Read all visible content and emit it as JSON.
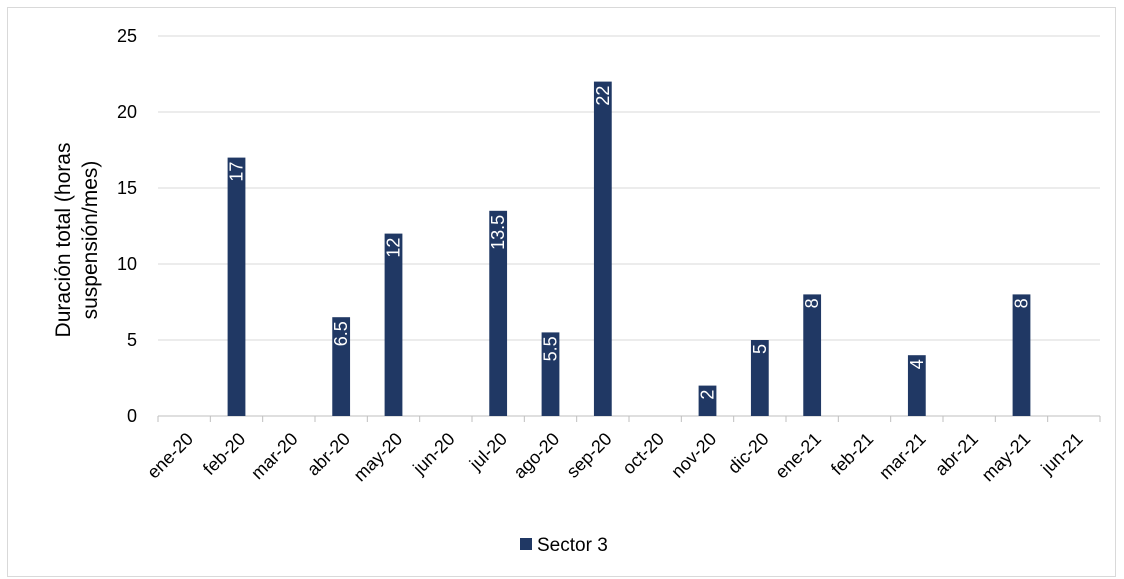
{
  "chart_data": {
    "type": "bar",
    "categories": [
      "ene-20",
      "feb-20",
      "mar-20",
      "abr-20",
      "may-20",
      "jun-20",
      "jul-20",
      "ago-20",
      "sep-20",
      "oct-20",
      "nov-20",
      "dic-20",
      "ene-21",
      "feb-21",
      "mar-21",
      "abr-21",
      "may-21",
      "jun-21"
    ],
    "series": [
      {
        "name": "Sector 3",
        "values": [
          0,
          17,
          0,
          6.5,
          12,
          0,
          13.5,
          5.5,
          22,
          0,
          2,
          5,
          8,
          0,
          4,
          0,
          8,
          0
        ],
        "labels": [
          "",
          "17",
          "",
          "6.5",
          "12",
          "",
          "13.5",
          "5.5",
          "22",
          "",
          "2",
          "5",
          "8",
          "",
          "4",
          "",
          "8",
          ""
        ],
        "color": "#203864"
      }
    ],
    "ylabel_line1": "Duración total (horas",
    "ylabel_line2": "suspensión/mes)",
    "ylim": [
      0,
      25
    ],
    "yticks": [
      0,
      5,
      10,
      15,
      20,
      25
    ],
    "grid": true,
    "legend": "bottom",
    "colors": {
      "gridline": "#d9d9d9",
      "axis": "#bfbfbf"
    }
  }
}
